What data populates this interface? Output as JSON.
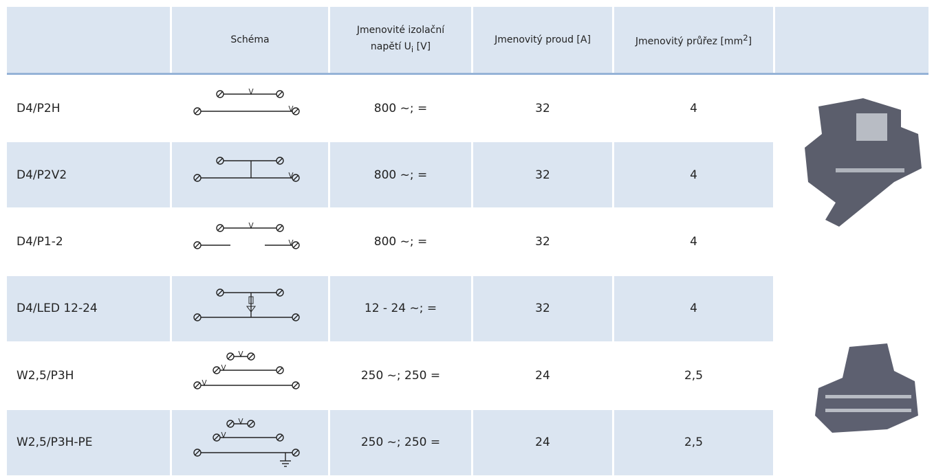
{
  "table": {
    "header": [
      "Schéma",
      [
        "Jmenovité izolační napětí  U",
        "i",
        " [V]"
      ],
      "Jmenovitý proud [A]",
      [
        "Jmenovitý průřez [mm",
        "2",
        "]"
      ]
    ],
    "rows": [
      [
        "D4/P2H",
        "800 ~; =",
        "32",
        "4"
      ],
      [
        "D4/P2V2",
        "800 ~; =",
        "32",
        "4"
      ],
      [
        "D4/P1-2",
        "800 ~; =",
        "32",
        "4"
      ],
      [
        "D4/LED 12-24",
        "12 - 24 ~; =",
        "32",
        "4"
      ],
      [
        "W2,5/P3H",
        "250 ~; 250 =",
        "24",
        "2,5"
      ],
      [
        "W2,5/P3H-PE",
        "250 ~; 250 =",
        "24",
        "2,5"
      ]
    ]
  }
}
